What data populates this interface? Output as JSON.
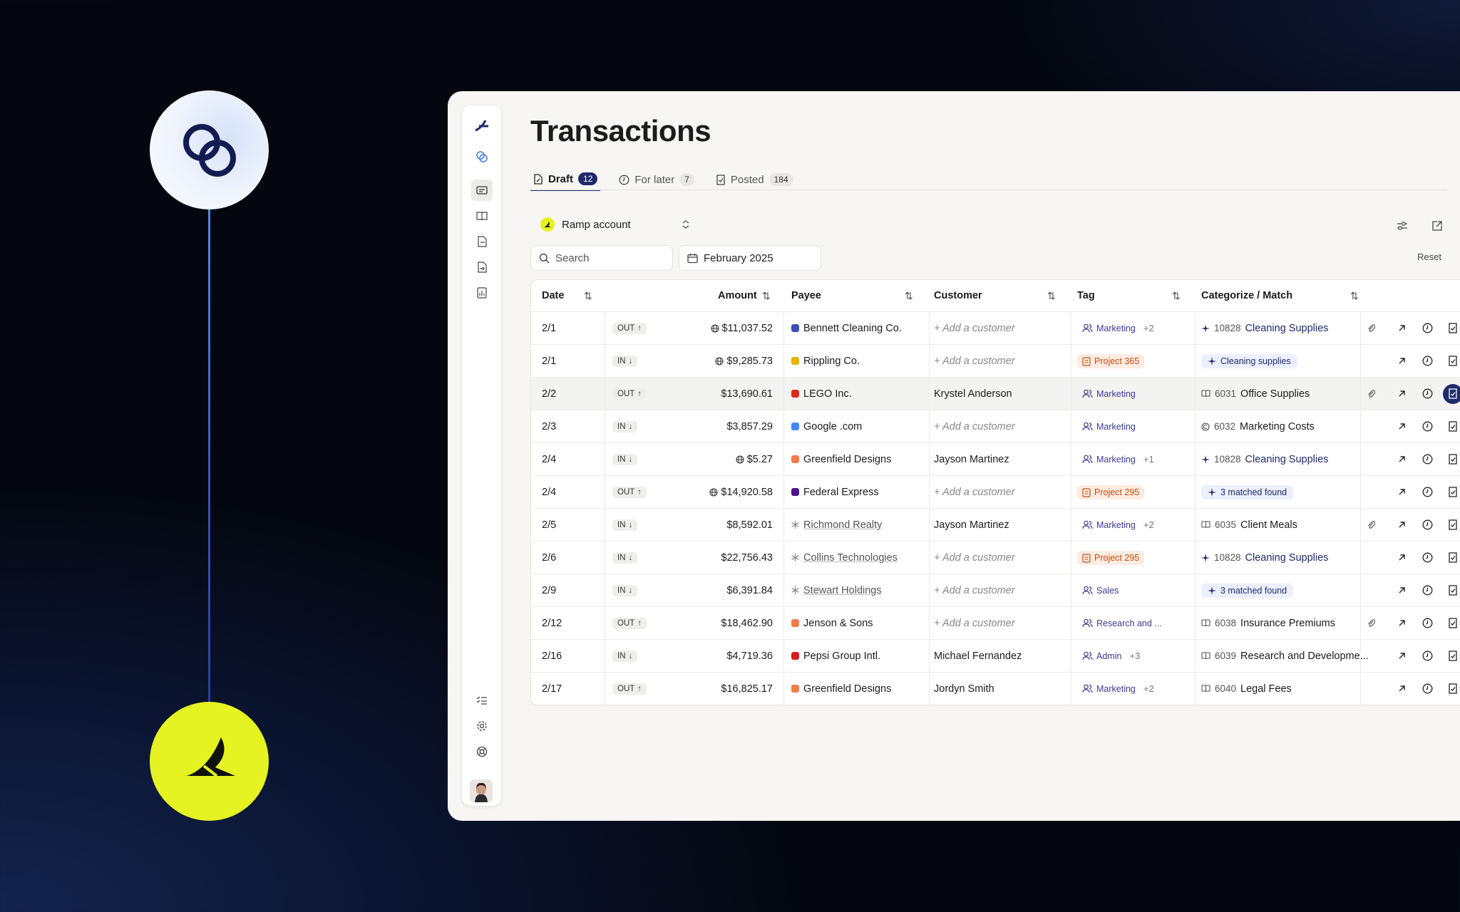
{
  "page": {
    "title": "Transactions"
  },
  "tabs": [
    {
      "label": "Draft",
      "count": "12"
    },
    {
      "label": "For later",
      "count": "7"
    },
    {
      "label": "Posted",
      "count": "184"
    }
  ],
  "account": {
    "label": "Ramp account"
  },
  "search": {
    "placeholder": "Search"
  },
  "date_filter": {
    "value": "February 2025"
  },
  "reset_label": "Reset",
  "columns": [
    "Date",
    "Amount",
    "Payee",
    "Customer",
    "Tag",
    "Categorize / Match"
  ],
  "rows": [
    {
      "date": "2/1",
      "dir": "OUT",
      "amount": "$11,037.52",
      "globe": true,
      "payee": "Bennett Cleaning Co.",
      "logo": "#3a4fb8",
      "customer": "",
      "tag": "Marketing",
      "tag_type": "people",
      "tag_extra": "+2",
      "code": "10828",
      "category": "Cleaning Supplies",
      "cat_type": "link",
      "clip": true
    },
    {
      "date": "2/1",
      "dir": "IN",
      "amount": "$9,285.73",
      "globe": true,
      "payee": "Rippling Co.",
      "logo": "#e7b100",
      "customer": "",
      "tag": "Project 365",
      "tag_type": "project",
      "tag_extra": "",
      "code": "",
      "category": "Cleaning supplies",
      "cat_type": "pill",
      "clip": false
    },
    {
      "date": "2/2",
      "dir": "OUT",
      "amount": "$13,690.61",
      "globe": false,
      "payee": "LEGO Inc.",
      "logo": "#d72b1e",
      "customer": "Krystel Anderson",
      "tag": "Marketing",
      "tag_type": "people",
      "tag_extra": "",
      "code": "6031",
      "category": "Office Supplies",
      "cat_type": "book",
      "clip": true
    },
    {
      "date": "2/3",
      "dir": "IN",
      "amount": "$3,857.29",
      "globe": false,
      "payee": "Google .com",
      "logo": "#4285f4",
      "customer": "",
      "tag": "Marketing",
      "tag_type": "people",
      "tag_extra": "",
      "code": "6032",
      "category": "Marketing Costs",
      "cat_type": "circle",
      "clip": false
    },
    {
      "date": "2/4",
      "dir": "IN",
      "amount": "$5.27",
      "globe": true,
      "payee": "Greenfield Designs",
      "logo": "#f07c4a",
      "customer": "Jayson Martinez",
      "tag": "Marketing",
      "tag_type": "people",
      "tag_extra": "+1",
      "code": "10828",
      "category": "Cleaning Supplies",
      "cat_type": "link",
      "clip": false
    },
    {
      "date": "2/4",
      "dir": "OUT",
      "amount": "$14,920.58",
      "globe": true,
      "payee": "Federal Express",
      "logo": "#4d148c",
      "customer": "",
      "tag": "Project 295",
      "tag_type": "project",
      "tag_extra": "",
      "code": "",
      "category": "3 matched found",
      "cat_type": "pill",
      "clip": false
    },
    {
      "date": "2/5",
      "dir": "IN",
      "amount": "$8,592.01",
      "globe": false,
      "payee": "Richmond Realty",
      "logo": "",
      "customer": "Jayson Martinez",
      "tag": "Marketing",
      "tag_type": "people",
      "tag_extra": "+2",
      "code": "6035",
      "category": "Client Meals",
      "cat_type": "book",
      "clip": true
    },
    {
      "date": "2/6",
      "dir": "IN",
      "amount": "$22,756.43",
      "globe": false,
      "payee": "Collins Technologies",
      "logo": "",
      "customer": "",
      "tag": "Project 295",
      "tag_type": "project",
      "tag_extra": "",
      "code": "10828",
      "category": "Cleaning Supplies",
      "cat_type": "link",
      "clip": false
    },
    {
      "date": "2/9",
      "dir": "IN",
      "amount": "$6,391.84",
      "globe": false,
      "payee": "Stewart Holdings",
      "logo": "",
      "customer": "",
      "tag": "Sales",
      "tag_type": "people",
      "tag_extra": "",
      "code": "",
      "category": "3 matched found",
      "cat_type": "pill",
      "clip": false
    },
    {
      "date": "2/12",
      "dir": "OUT",
      "amount": "$18,462.90",
      "globe": false,
      "payee": "Jenson & Sons",
      "logo": "#f07c4a",
      "customer": "",
      "tag": "Research and ...",
      "tag_type": "people",
      "tag_extra": "",
      "code": "6038",
      "category": "Insurance Premiums",
      "cat_type": "book",
      "clip": true
    },
    {
      "date": "2/16",
      "dir": "IN",
      "amount": "$4,719.36",
      "globe": false,
      "payee": "Pepsi Group Intl.",
      "logo": "#d0201f",
      "customer": "Michael Fernandez",
      "tag": "Admin",
      "tag_type": "people",
      "tag_extra": "+3",
      "code": "6039",
      "category": "Research and Developme...",
      "cat_type": "book",
      "clip": false
    },
    {
      "date": "2/17",
      "dir": "OUT",
      "amount": "$16,825.17",
      "globe": false,
      "payee": "Greenfield Designs",
      "logo": "#f07c4a",
      "customer": "Jordyn Smith",
      "tag": "Marketing",
      "tag_type": "people",
      "tag_extra": "+2",
      "code": "6040",
      "category": "Legal Fees",
      "cat_type": "book",
      "clip": false
    }
  ],
  "add_customer_label": "Add a customer",
  "colors": {
    "accent": "#1f2a6b",
    "ramp_yellow": "#e4f321",
    "project_text": "#c24d12",
    "project_bg": "#fdece2"
  }
}
